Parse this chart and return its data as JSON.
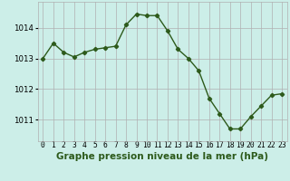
{
  "x": [
    0,
    1,
    2,
    3,
    4,
    5,
    6,
    7,
    8,
    9,
    10,
    11,
    12,
    13,
    14,
    15,
    16,
    17,
    18,
    19,
    20,
    21,
    22,
    23
  ],
  "y": [
    1013.0,
    1013.5,
    1013.2,
    1013.05,
    1013.2,
    1013.3,
    1013.35,
    1013.4,
    1014.1,
    1014.45,
    1014.4,
    1014.4,
    1013.9,
    1013.3,
    1013.0,
    1012.6,
    1011.7,
    1011.2,
    1010.7,
    1010.7,
    1011.1,
    1011.45,
    1011.8,
    1011.85
  ],
  "line_color": "#2d5a1b",
  "marker": "D",
  "marker_size": 2.2,
  "line_width": 1.0,
  "bg_color": "#cceee8",
  "grid_color": "#b0b0b0",
  "xlabel": "Graphe pression niveau de la mer (hPa)",
  "xlabel_fontsize": 7.5,
  "ylabel_ticks": [
    1011,
    1012,
    1013,
    1014
  ],
  "ylim": [
    1010.3,
    1014.85
  ],
  "xlim": [
    -0.5,
    23.5
  ],
  "xtick_labels": [
    "0",
    "1",
    "2",
    "3",
    "4",
    "5",
    "6",
    "7",
    "8",
    "9",
    "10",
    "11",
    "12",
    "13",
    "14",
    "15",
    "16",
    "17",
    "18",
    "19",
    "20",
    "21",
    "22",
    "23"
  ],
  "tick_fontsize": 5.8,
  "ytick_fontsize": 6.2
}
